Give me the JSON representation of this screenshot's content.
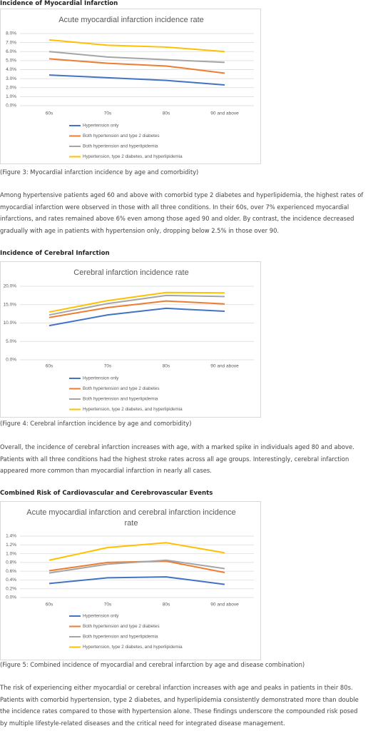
{
  "document": {
    "sections": [
      {
        "heading": "Incidence of Myocardial Infarction",
        "caption": "(Figure 3: Myocardial infarction incidence by age and comorbidity)",
        "paragraph": "Among hypertensive patients aged 60 and above with comorbid type 2 diabetes and hyperlipidemia, the highest rates of myocardial infarction were observed in those with all three conditions. In their 60s, over 7% experienced myocardial infarctions, and rates remained above 6% even among those aged 90 and older. By contrast, the incidence decreased gradually with age in patients with hypertension only, dropping below 2.5% in those over 90."
      },
      {
        "heading": "Incidence of Cerebral Infarction",
        "caption": "(Figure 4: Cerebral infarction incidence by age and comorbidity)",
        "paragraph": "Overall, the incidence of cerebral infarction increases with age, with a marked spike in individuals aged 80 and above. Patients with all three conditions had the highest stroke rates across all age groups. Interestingly, cerebral infarction appeared more common than myocardial infarction in nearly all cases."
      },
      {
        "heading": "Combined Risk of Cardiovascular and Cerebrovascular Events",
        "caption": "(Figure 5: Combined incidence of myocardial and cerebral infarction by age and disease combination)",
        "paragraph": "The risk of experiencing either myocardial or cerebral infarction increases with age and peaks in patients in their 80s. Patients with comorbid hypertension, type 2 diabetes, and hyperlipidemia consistently demonstrated more than double the incidence rates compared to those with hypertension alone. These findings underscore the compounded risk posed by multiple lifestyle-related diseases and the critical need for integrated disease management."
      }
    ]
  },
  "chart_data": [
    {
      "type": "line",
      "title": "Acute myocardial infarction incidence rate",
      "categories": [
        "60s",
        "70s",
        "80s",
        "90 and above"
      ],
      "series": [
        {
          "name": "Hypertension only",
          "color": "#4472c4",
          "values": [
            3.4,
            3.1,
            2.8,
            2.3
          ]
        },
        {
          "name": "Both hypertension and type 2 diabetes",
          "color": "#ed7d31",
          "values": [
            5.2,
            4.7,
            4.4,
            3.6
          ]
        },
        {
          "name": "Both hypertension and hyperlipidemia",
          "color": "#a5a5a5",
          "values": [
            6.0,
            5.4,
            5.1,
            4.8
          ]
        },
        {
          "name": "Hypertension, type 2 diabetes, and hyperlipidemia",
          "color": "#ffc000",
          "values": [
            7.3,
            6.7,
            6.5,
            6.0
          ]
        }
      ],
      "ylim": [
        0,
        8
      ],
      "yticks": [
        {
          "value": 0,
          "label": "0.0%"
        },
        {
          "value": 1,
          "label": "1.0%"
        },
        {
          "value": 2,
          "label": "2.0%"
        },
        {
          "value": 3,
          "label": "3.0%"
        },
        {
          "value": 4,
          "label": "4.0%"
        },
        {
          "value": 5,
          "label": "5.0%"
        },
        {
          "value": 6,
          "label": "6.0%"
        },
        {
          "value": 7,
          "label": "7.0%"
        },
        {
          "value": 8,
          "label": "8.0%"
        }
      ],
      "grid": true,
      "legend": "bottom"
    },
    {
      "type": "line",
      "title": "Cerebral infarction incidence rate",
      "categories": [
        "60s",
        "70s",
        "80s",
        "90 and above"
      ],
      "series": [
        {
          "name": "Hypertension only",
          "color": "#4472c4",
          "values": [
            9.3,
            12.2,
            14.0,
            13.2
          ]
        },
        {
          "name": "Both hypertension and type 2 diabetes",
          "color": "#ed7d31",
          "values": [
            11.5,
            14.2,
            16.0,
            15.2
          ]
        },
        {
          "name": "Both hypertension and hyperlipidemia",
          "color": "#a5a5a5",
          "values": [
            12.2,
            15.3,
            17.5,
            17.2
          ]
        },
        {
          "name": "Hypertension, type 2 diabetes, and hyperlipidemia",
          "color": "#ffc000",
          "values": [
            13.0,
            16.1,
            18.3,
            18.2
          ]
        }
      ],
      "ylim": [
        0,
        20
      ],
      "yticks": [
        {
          "value": 0,
          "label": "0.0%"
        },
        {
          "value": 5,
          "label": "5.0%"
        },
        {
          "value": 10,
          "label": "10.0%"
        },
        {
          "value": 15,
          "label": "15.0%"
        },
        {
          "value": 20,
          "label": "20.0%"
        }
      ],
      "grid": true,
      "legend": "bottom"
    },
    {
      "type": "line",
      "title": "Acute myocardial infarction and cerebral infarction incidence rate",
      "categories": [
        "60s",
        "70s",
        "80s",
        "90 and above"
      ],
      "series": [
        {
          "name": "Hypertension only",
          "color": "#4472c4",
          "values": [
            0.32,
            0.45,
            0.47,
            0.3
          ]
        },
        {
          "name": "Both hypertension and type 2 diabetes",
          "color": "#ed7d31",
          "values": [
            0.61,
            0.8,
            0.83,
            0.57
          ]
        },
        {
          "name": "Both hypertension and hyperlipidemia",
          "color": "#a5a5a5",
          "values": [
            0.56,
            0.76,
            0.85,
            0.66
          ]
        },
        {
          "name": "Hypertension, type 2 diabetes, and hyperlipidemia",
          "color": "#ffc000",
          "values": [
            0.85,
            1.14,
            1.25,
            1.02
          ]
        }
      ],
      "ylim": [
        0,
        1.4
      ],
      "yticks": [
        {
          "value": 0,
          "label": "0.0%"
        },
        {
          "value": 0.2,
          "label": "0.2%"
        },
        {
          "value": 0.4,
          "label": "0.4%"
        },
        {
          "value": 0.6,
          "label": "0.6%"
        },
        {
          "value": 0.8,
          "label": "0.8%"
        },
        {
          "value": 1.0,
          "label": "1.0%"
        },
        {
          "value": 1.2,
          "label": "1.2%"
        },
        {
          "value": 1.4,
          "label": "1.4%"
        }
      ],
      "grid": true,
      "legend": "bottom"
    }
  ]
}
